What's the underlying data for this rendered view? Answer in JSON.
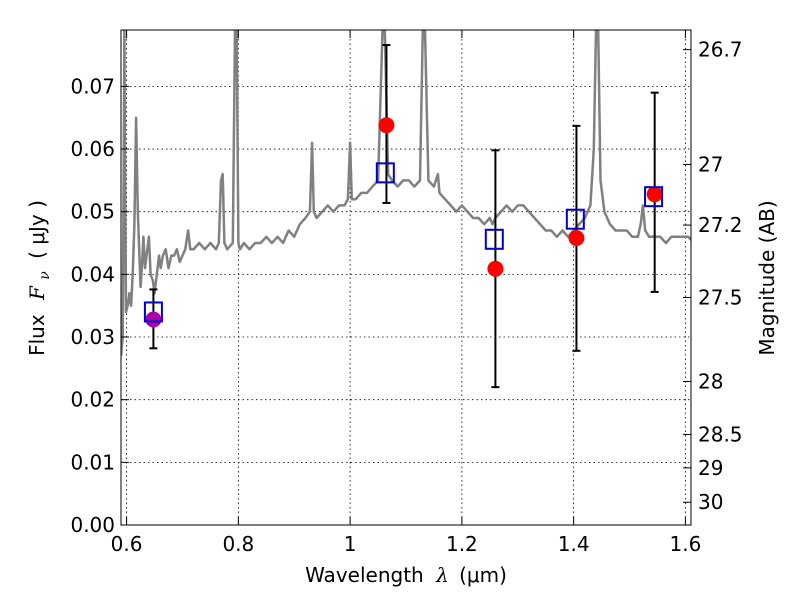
{
  "chart_data": {
    "type": "scatter",
    "title": "",
    "xlabel": "Wavelength",
    "xlabel_symbol": "λ",
    "xlabel_unit": "(μm)",
    "ylabel": "Flux",
    "ylabel_symbol": "F",
    "ylabel_sub": "ν",
    "ylabel_unit": "( μJy )",
    "y2label": "Magnitude (AB)",
    "xlim": [
      0.59,
      1.61
    ],
    "ylim": [
      0.0,
      0.079
    ],
    "xticks": [
      {
        "value": 0.6,
        "label": "0.6"
      },
      {
        "value": 0.8,
        "label": "0.8"
      },
      {
        "value": 1.0,
        "label": "1"
      },
      {
        "value": 1.2,
        "label": "1.2"
      },
      {
        "value": 1.4,
        "label": "1.4"
      },
      {
        "value": 1.6,
        "label": "1.6"
      }
    ],
    "yticks": [
      {
        "value": 0.0,
        "label": "0.00"
      },
      {
        "value": 0.01,
        "label": "0.01"
      },
      {
        "value": 0.02,
        "label": "0.02"
      },
      {
        "value": 0.03,
        "label": "0.03"
      },
      {
        "value": 0.04,
        "label": "0.04"
      },
      {
        "value": 0.05,
        "label": "0.05"
      },
      {
        "value": 0.06,
        "label": "0.06"
      },
      {
        "value": 0.07,
        "label": "0.07"
      }
    ],
    "y2ticks": [
      {
        "mag": 26.7,
        "label": "26.7"
      },
      {
        "mag": 27.0,
        "label": "27"
      },
      {
        "mag": 27.2,
        "label": "27.2"
      },
      {
        "mag": 27.5,
        "label": "27.5"
      },
      {
        "mag": 28.0,
        "label": "28"
      },
      {
        "mag": 28.5,
        "label": "28.5"
      },
      {
        "mag": 29.0,
        "label": "29"
      },
      {
        "mag": 30.0,
        "label": "30"
      }
    ],
    "grid": true,
    "colors": {
      "model": "#808080",
      "observed": "#ff0000",
      "observed_first": "#aa00aa",
      "model_box": "#0000cc",
      "errorbar": "#000000"
    },
    "model_spectrum": [
      [
        0.59,
        0.027
      ],
      [
        0.593,
        0.03
      ],
      [
        0.595,
        0.06
      ],
      [
        0.596,
        0.079
      ],
      [
        0.597,
        0.06
      ],
      [
        0.599,
        0.034
      ],
      [
        0.602,
        0.035
      ],
      [
        0.605,
        0.037
      ],
      [
        0.608,
        0.035
      ],
      [
        0.611,
        0.04
      ],
      [
        0.614,
        0.048
      ],
      [
        0.617,
        0.065
      ],
      [
        0.62,
        0.05
      ],
      [
        0.625,
        0.038
      ],
      [
        0.628,
        0.042
      ],
      [
        0.63,
        0.046
      ],
      [
        0.633,
        0.041
      ],
      [
        0.637,
        0.044
      ],
      [
        0.64,
        0.046
      ],
      [
        0.643,
        0.04
      ],
      [
        0.647,
        0.039
      ],
      [
        0.65,
        0.037
      ],
      [
        0.654,
        0.04
      ],
      [
        0.658,
        0.043
      ],
      [
        0.661,
        0.041
      ],
      [
        0.665,
        0.043
      ],
      [
        0.67,
        0.044
      ],
      [
        0.675,
        0.041
      ],
      [
        0.68,
        0.043
      ],
      [
        0.685,
        0.043
      ],
      [
        0.69,
        0.044
      ],
      [
        0.695,
        0.042
      ],
      [
        0.7,
        0.043
      ],
      [
        0.705,
        0.044
      ],
      [
        0.71,
        0.047
      ],
      [
        0.714,
        0.044
      ],
      [
        0.72,
        0.044
      ],
      [
        0.73,
        0.045
      ],
      [
        0.74,
        0.044
      ],
      [
        0.75,
        0.045
      ],
      [
        0.76,
        0.044
      ],
      [
        0.765,
        0.045
      ],
      [
        0.769,
        0.055
      ],
      [
        0.772,
        0.056
      ],
      [
        0.775,
        0.045
      ],
      [
        0.78,
        0.044
      ],
      [
        0.79,
        0.045
      ],
      [
        0.794,
        0.079
      ],
      [
        0.797,
        0.079
      ],
      [
        0.8,
        0.045
      ],
      [
        0.803,
        0.044
      ],
      [
        0.81,
        0.045
      ],
      [
        0.82,
        0.044
      ],
      [
        0.83,
        0.045
      ],
      [
        0.84,
        0.045
      ],
      [
        0.85,
        0.046
      ],
      [
        0.86,
        0.045
      ],
      [
        0.87,
        0.046
      ],
      [
        0.88,
        0.045
      ],
      [
        0.89,
        0.047
      ],
      [
        0.9,
        0.046
      ],
      [
        0.91,
        0.048
      ],
      [
        0.92,
        0.049
      ],
      [
        0.928,
        0.05
      ],
      [
        0.932,
        0.061
      ],
      [
        0.935,
        0.05
      ],
      [
        0.94,
        0.049
      ],
      [
        0.95,
        0.05
      ],
      [
        0.96,
        0.051
      ],
      [
        0.97,
        0.05
      ],
      [
        0.98,
        0.051
      ],
      [
        0.99,
        0.051
      ],
      [
        0.996,
        0.052
      ],
      [
        1.0,
        0.061
      ],
      [
        1.003,
        0.052
      ],
      [
        1.01,
        0.052
      ],
      [
        1.02,
        0.053
      ],
      [
        1.03,
        0.053
      ],
      [
        1.04,
        0.054
      ],
      [
        1.05,
        0.055
      ],
      [
        1.058,
        0.079
      ],
      [
        1.062,
        0.079
      ],
      [
        1.068,
        0.056
      ],
      [
        1.075,
        0.055
      ],
      [
        1.085,
        0.054
      ],
      [
        1.095,
        0.055
      ],
      [
        1.105,
        0.055
      ],
      [
        1.115,
        0.054
      ],
      [
        1.125,
        0.055
      ],
      [
        1.13,
        0.079
      ],
      [
        1.134,
        0.079
      ],
      [
        1.14,
        0.055
      ],
      [
        1.15,
        0.054
      ],
      [
        1.157,
        0.056
      ],
      [
        1.16,
        0.053
      ],
      [
        1.17,
        0.052
      ],
      [
        1.18,
        0.051
      ],
      [
        1.19,
        0.05
      ],
      [
        1.2,
        0.051
      ],
      [
        1.21,
        0.05
      ],
      [
        1.22,
        0.049
      ],
      [
        1.23,
        0.049
      ],
      [
        1.24,
        0.048
      ],
      [
        1.25,
        0.049
      ],
      [
        1.255,
        0.048
      ],
      [
        1.26,
        0.049
      ],
      [
        1.27,
        0.05
      ],
      [
        1.28,
        0.051
      ],
      [
        1.29,
        0.05
      ],
      [
        1.3,
        0.051
      ],
      [
        1.31,
        0.051
      ],
      [
        1.32,
        0.05
      ],
      [
        1.33,
        0.049
      ],
      [
        1.34,
        0.048
      ],
      [
        1.35,
        0.047
      ],
      [
        1.36,
        0.047
      ],
      [
        1.37,
        0.046
      ],
      [
        1.38,
        0.047
      ],
      [
        1.39,
        0.046
      ],
      [
        1.4,
        0.047
      ],
      [
        1.41,
        0.048
      ],
      [
        1.42,
        0.049
      ],
      [
        1.43,
        0.051
      ],
      [
        1.436,
        0.06
      ],
      [
        1.44,
        0.079
      ],
      [
        1.444,
        0.079
      ],
      [
        1.448,
        0.055
      ],
      [
        1.455,
        0.05
      ],
      [
        1.465,
        0.048
      ],
      [
        1.475,
        0.047
      ],
      [
        1.485,
        0.047
      ],
      [
        1.495,
        0.047
      ],
      [
        1.505,
        0.046
      ],
      [
        1.515,
        0.046
      ],
      [
        1.52,
        0.048
      ],
      [
        1.524,
        0.051
      ],
      [
        1.528,
        0.047
      ],
      [
        1.535,
        0.046
      ],
      [
        1.545,
        0.046
      ],
      [
        1.555,
        0.046
      ],
      [
        1.565,
        0.045
      ],
      [
        1.575,
        0.046
      ],
      [
        1.585,
        0.046
      ],
      [
        1.595,
        0.046
      ],
      [
        1.605,
        0.046
      ],
      [
        1.61,
        0.0455
      ]
    ],
    "observed": [
      {
        "x": 0.648,
        "y": 0.0328,
        "yerr_low": 0.0282,
        "yerr_high": 0.0376
      },
      {
        "x": 1.065,
        "y": 0.0638,
        "yerr_low": 0.0514,
        "yerr_high": 0.0766
      },
      {
        "x": 1.26,
        "y": 0.0409,
        "yerr_low": 0.022,
        "yerr_high": 0.0598
      },
      {
        "x": 1.405,
        "y": 0.0458,
        "yerr_low": 0.0278,
        "yerr_high": 0.0637
      },
      {
        "x": 1.545,
        "y": 0.0528,
        "yerr_low": 0.0372,
        "yerr_high": 0.069
      }
    ],
    "model_photometry": [
      {
        "x": 0.648,
        "y": 0.034
      },
      {
        "x": 1.063,
        "y": 0.0562
      },
      {
        "x": 1.258,
        "y": 0.0456
      },
      {
        "x": 1.403,
        "y": 0.0488
      },
      {
        "x": 1.543,
        "y": 0.0524
      }
    ]
  }
}
